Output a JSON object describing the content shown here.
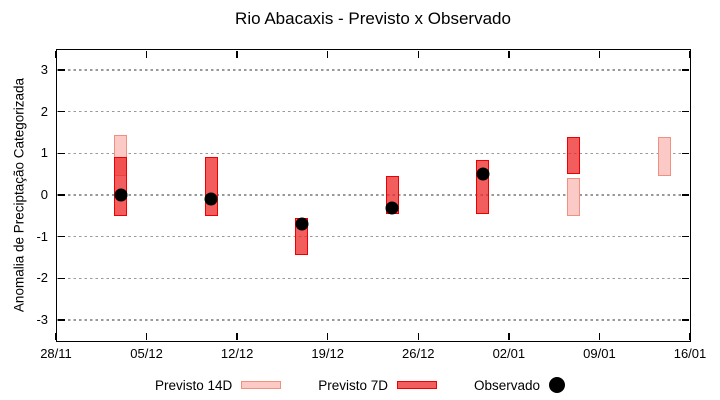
{
  "title": "Rio Abacaxis - Previsto x Observado",
  "y_axis": {
    "label": "Anomalia de Preciptação Categorizada",
    "ticks": [
      3,
      2,
      1,
      0,
      -1,
      -2,
      -3
    ],
    "min": -3.5,
    "max": 3.5
  },
  "x_axis": {
    "ticks": [
      "28/11",
      "05/12",
      "12/12",
      "19/12",
      "26/12",
      "02/01",
      "09/01",
      "16/01"
    ],
    "days_per_tick": 7,
    "total_days": 49
  },
  "legend": {
    "items": [
      {
        "id": "previsto14",
        "label": "Previsto 14D",
        "swatch": "bar-light-red"
      },
      {
        "id": "previsto7",
        "label": "Previsto 7D",
        "swatch": "bar-red"
      },
      {
        "id": "observado",
        "label": "Observado",
        "swatch": "dot-black"
      }
    ]
  },
  "colors": {
    "prev14_fill": "#fbcac6",
    "prev14_border": "#f0907e",
    "prev7_fill": "rgba(238,40,40,0.75)",
    "prev7_border": "#ee0000",
    "observed": "#000000",
    "grid": "#999999",
    "axis": "#000000"
  },
  "chart_data": {
    "type": "interval-bar+scatter",
    "xlabel": "",
    "ylabel": "Anomalia de Preciptação Categorizada",
    "ylim": [
      -3.5,
      3.5
    ],
    "grid": "horizontal-dotted",
    "legend_position": "below-chart",
    "series_meaning": {
      "prev14": "Previsto 14D forecast anomaly range [low, high]",
      "prev7": "Previsto 7D forecast anomaly range [low, high]",
      "obs": "Observado (observed anomaly value)"
    },
    "points": [
      {
        "date": "03/12",
        "day": 5,
        "prev14": [
          0.45,
          1.45
        ],
        "prev7": [
          -0.5,
          0.9
        ],
        "obs": 0.0
      },
      {
        "date": "10/12",
        "day": 12,
        "prev7": [
          -0.5,
          0.9
        ],
        "obs": -0.1
      },
      {
        "date": "17/12",
        "day": 19,
        "prev7": [
          -1.45,
          -0.55
        ],
        "obs": -0.7
      },
      {
        "date": "24/12",
        "day": 26,
        "prev7": [
          -0.45,
          0.45
        ],
        "obs": -0.3
      },
      {
        "date": "31/12",
        "day": 33,
        "prev7": [
          -0.45,
          0.85
        ],
        "obs": 0.5
      },
      {
        "date": "07/01",
        "day": 40,
        "prev14": [
          -0.5,
          0.4
        ],
        "prev7": [
          0.5,
          1.4
        ]
      },
      {
        "date": "14/01",
        "day": 47,
        "prev14": [
          0.45,
          1.4
        ]
      }
    ]
  }
}
